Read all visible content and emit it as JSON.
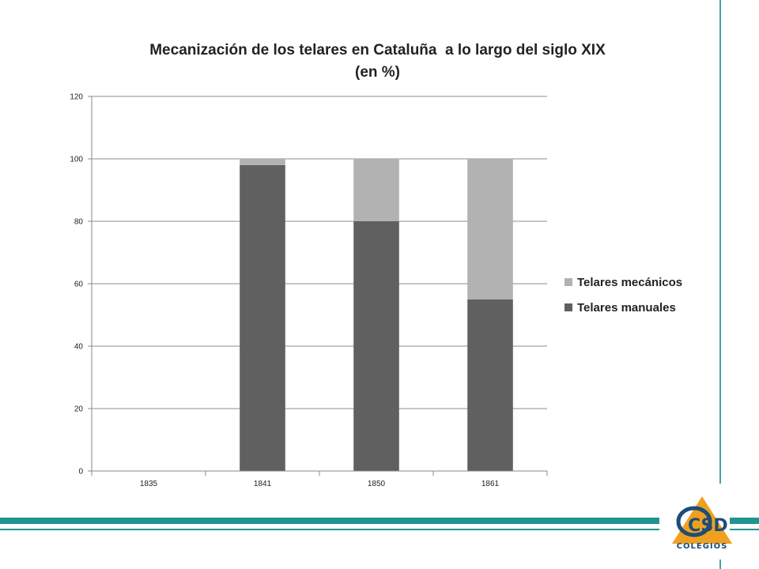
{
  "chart_data": {
    "type": "bar",
    "stacked": true,
    "title": [
      "Mecanización de los telares en Cataluña  a lo largo del siglo XIX",
      "(en %)"
    ],
    "xlabel": "",
    "ylabel": "",
    "categories": [
      "1835",
      "1841",
      "1850",
      "1861"
    ],
    "series": [
      {
        "name": "Telares manuales",
        "values": [
          0,
          98,
          80,
          55
        ],
        "color": "#606060"
      },
      {
        "name": "Telares mecánicos",
        "values": [
          0,
          2,
          20,
          45
        ],
        "color": "#b2b2b2"
      }
    ],
    "legend_order": [
      1,
      0
    ],
    "ylim": [
      0,
      120
    ],
    "yticks": [
      "0",
      "20",
      "40",
      "60",
      "80",
      "100",
      "120"
    ],
    "grid": true,
    "legend_position": "right"
  },
  "theme": {
    "accent": "#1f9591",
    "logo_orange": "#f0a020",
    "logo_blue": "#1c4d78"
  },
  "logo": {
    "mark": "CSD",
    "text": "COLEGIOS"
  }
}
